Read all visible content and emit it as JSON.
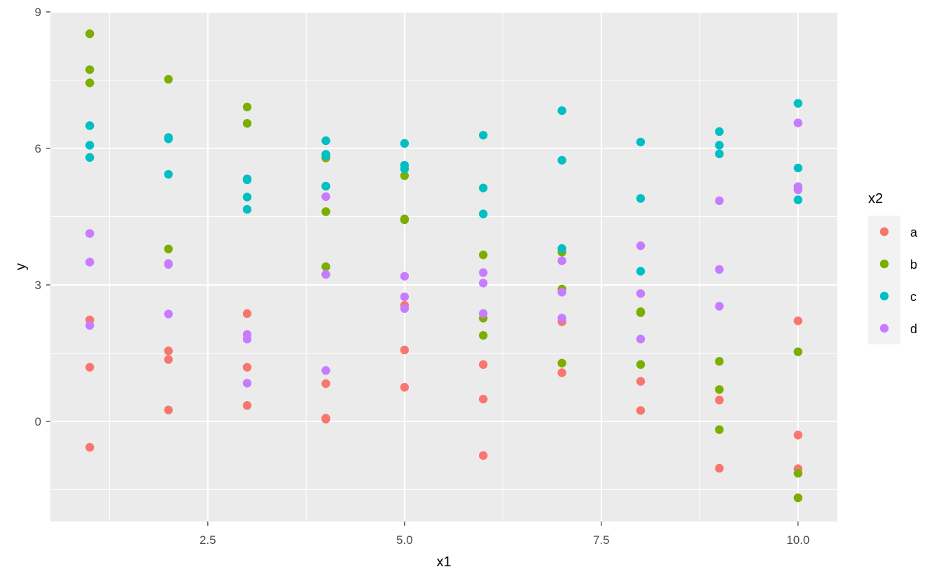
{
  "chart_data": {
    "type": "scatter",
    "title": "",
    "xlabel": "x1",
    "ylabel": "y",
    "xlim": [
      0.5,
      10.5
    ],
    "ylim": [
      -2.2,
      9.0
    ],
    "x_ticks": [
      2.5,
      5.0,
      7.5,
      10.0
    ],
    "x_tick_labels": [
      "2.5",
      "5.0",
      "7.5",
      "10.0"
    ],
    "y_ticks": [
      0,
      3,
      6,
      9
    ],
    "y_tick_labels": [
      "0",
      "3",
      "6",
      "9"
    ],
    "grid": true,
    "legend": {
      "title": "x2",
      "position": "right"
    },
    "series": [
      {
        "name": "a",
        "color": "#F8766D",
        "points": [
          [
            1,
            2.23
          ],
          [
            1,
            1.19
          ],
          [
            1,
            -0.57
          ],
          [
            2,
            1.55
          ],
          [
            2,
            1.36
          ],
          [
            2,
            0.25
          ],
          [
            3,
            2.37
          ],
          [
            3,
            1.19
          ],
          [
            3,
            0.35
          ],
          [
            4,
            0.83
          ],
          [
            4,
            0.07
          ],
          [
            4,
            0.05
          ],
          [
            5,
            2.55
          ],
          [
            5,
            1.57
          ],
          [
            5,
            0.75
          ],
          [
            6,
            1.25
          ],
          [
            6,
            0.49
          ],
          [
            6,
            -0.75
          ],
          [
            7,
            2.19
          ],
          [
            7,
            1.07
          ],
          [
            8,
            0.88
          ],
          [
            8,
            0.24
          ],
          [
            9,
            0.47
          ],
          [
            9,
            -1.03
          ],
          [
            10,
            2.21
          ],
          [
            10,
            -0.3
          ],
          [
            10,
            -1.04
          ]
        ]
      },
      {
        "name": "b",
        "color": "#7CAE00",
        "points": [
          [
            1,
            8.52
          ],
          [
            1,
            7.73
          ],
          [
            1,
            7.44
          ],
          [
            2,
            7.52
          ],
          [
            2,
            3.79
          ],
          [
            3,
            6.91
          ],
          [
            3,
            6.55
          ],
          [
            4,
            5.79
          ],
          [
            4,
            4.61
          ],
          [
            4,
            3.4
          ],
          [
            5,
            5.4
          ],
          [
            5,
            4.45
          ],
          [
            5,
            4.43
          ],
          [
            6,
            3.66
          ],
          [
            6,
            2.27
          ],
          [
            6,
            1.89
          ],
          [
            7,
            3.72
          ],
          [
            7,
            2.91
          ],
          [
            7,
            1.28
          ],
          [
            8,
            2.41
          ],
          [
            8,
            2.39
          ],
          [
            8,
            1.25
          ],
          [
            9,
            1.32
          ],
          [
            9,
            0.7
          ],
          [
            9,
            -0.18
          ],
          [
            10,
            1.53
          ],
          [
            10,
            -1.14
          ],
          [
            10,
            -1.68
          ]
        ]
      },
      {
        "name": "c",
        "color": "#00BFC4",
        "points": [
          [
            1,
            6.5
          ],
          [
            1,
            6.07
          ],
          [
            1,
            5.8
          ],
          [
            2,
            6.24
          ],
          [
            2,
            6.21
          ],
          [
            2,
            5.43
          ],
          [
            3,
            5.33
          ],
          [
            3,
            5.31
          ],
          [
            3,
            4.93
          ],
          [
            3,
            4.66
          ],
          [
            4,
            6.17
          ],
          [
            4,
            5.87
          ],
          [
            4,
            5.84
          ],
          [
            4,
            5.17
          ],
          [
            5,
            6.11
          ],
          [
            5,
            5.63
          ],
          [
            5,
            5.55
          ],
          [
            6,
            6.29
          ],
          [
            6,
            5.13
          ],
          [
            6,
            4.56
          ],
          [
            7,
            6.83
          ],
          [
            7,
            5.74
          ],
          [
            7,
            3.8
          ],
          [
            8,
            6.14
          ],
          [
            8,
            4.9
          ],
          [
            8,
            3.3
          ],
          [
            9,
            6.37
          ],
          [
            9,
            6.07
          ],
          [
            9,
            5.88
          ],
          [
            10,
            6.99
          ],
          [
            10,
            5.57
          ],
          [
            10,
            4.87
          ]
        ]
      },
      {
        "name": "d",
        "color": "#C77CFF",
        "points": [
          [
            1,
            4.13
          ],
          [
            1,
            3.5
          ],
          [
            1,
            2.11
          ],
          [
            2,
            3.47
          ],
          [
            2,
            3.45
          ],
          [
            2,
            2.36
          ],
          [
            3,
            1.91
          ],
          [
            3,
            1.81
          ],
          [
            3,
            0.84
          ],
          [
            4,
            4.94
          ],
          [
            4,
            3.23
          ],
          [
            4,
            1.12
          ],
          [
            5,
            3.19
          ],
          [
            5,
            2.74
          ],
          [
            5,
            2.48
          ],
          [
            6,
            3.27
          ],
          [
            6,
            3.04
          ],
          [
            6,
            2.37
          ],
          [
            7,
            3.53
          ],
          [
            7,
            2.84
          ],
          [
            7,
            2.27
          ],
          [
            8,
            3.86
          ],
          [
            8,
            2.81
          ],
          [
            8,
            1.81
          ],
          [
            9,
            4.85
          ],
          [
            9,
            3.34
          ],
          [
            9,
            2.53
          ],
          [
            10,
            6.56
          ],
          [
            10,
            5.16
          ],
          [
            10,
            5.09
          ]
        ]
      }
    ]
  }
}
